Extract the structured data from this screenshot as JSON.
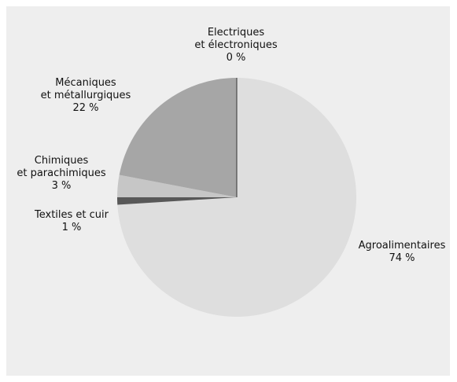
{
  "chart_data": {
    "type": "pie",
    "title": "",
    "slices": [
      {
        "name": "Agroalimentaires",
        "value": 74,
        "value_label": "74 %",
        "color": "#dedede"
      },
      {
        "name": "Textiles et cuir",
        "value": 1,
        "value_label": "1 %",
        "color": "#585858"
      },
      {
        "name": "Chimiques et parachimiques",
        "value": 3,
        "value_label": "3 %",
        "color": "#c6c6c6"
      },
      {
        "name": "Mécaniques et métallurgiques",
        "value": 22,
        "value_label": "22 %",
        "color": "#a6a6a6"
      },
      {
        "name": "Electriques et électroniques",
        "value": 0,
        "value_label": "0 %",
        "color": "#333333"
      }
    ],
    "labels": {
      "agro": {
        "l1": "Agroalimentaires",
        "l2": "74 %"
      },
      "textiles": {
        "l1": "Textiles et cuir",
        "l2": "1 %"
      },
      "chimiques": {
        "l1": "Chimiques",
        "l2": "et parachimiques",
        "l3": "3 %"
      },
      "mecaniques": {
        "l1": "Mécaniques",
        "l2": "et métallurgiques",
        "l3": "22 %"
      },
      "electriques": {
        "l1": "Electriques",
        "l2": "et électroniques",
        "l3": "0 %"
      }
    }
  }
}
